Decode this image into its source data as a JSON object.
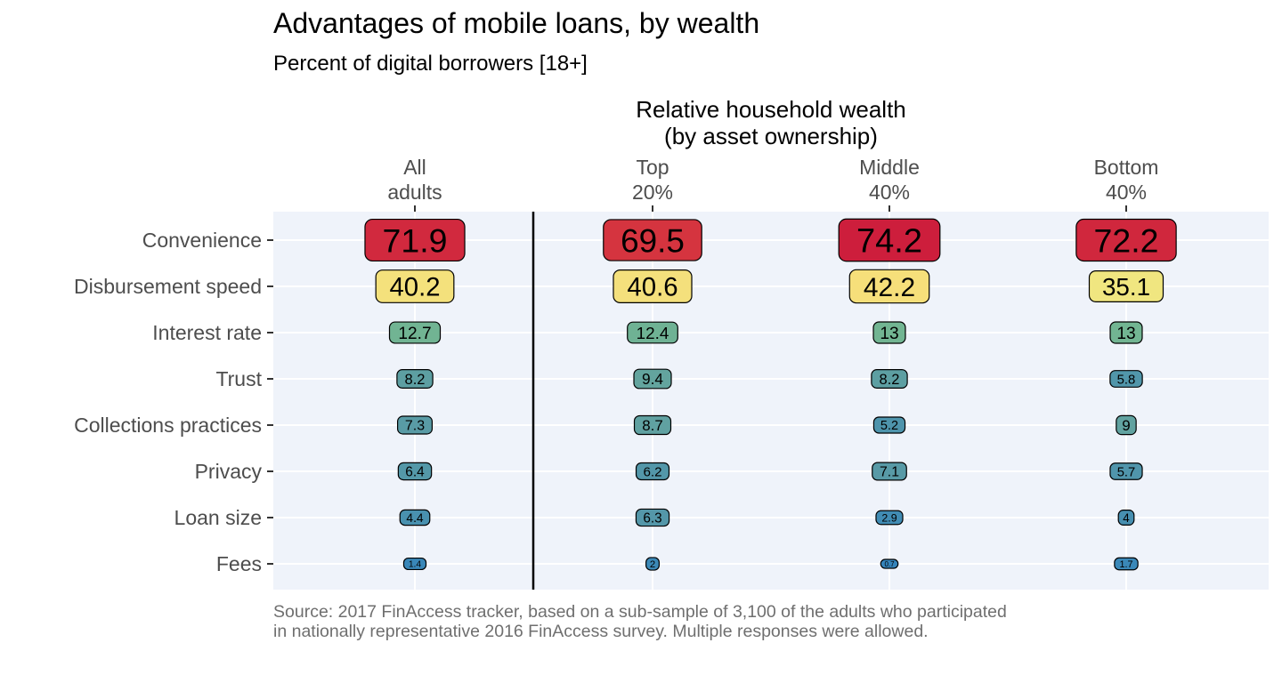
{
  "chart_data": {
    "type": "table",
    "title": "Advantages of mobile loans, by wealth",
    "subtitle": "Percent of digital borrowers [18+]",
    "group_header_line1": "Relative household wealth",
    "group_header_line2": "(by asset ownership)",
    "columns": [
      {
        "line1": "All",
        "line2": "adults"
      },
      {
        "line1": "Top",
        "line2": "20%"
      },
      {
        "line1": "Middle",
        "line2": "40%"
      },
      {
        "line1": "Bottom",
        "line2": "40%"
      }
    ],
    "rows": [
      "Convenience",
      "Disbursement speed",
      "Interest rate",
      "Trust",
      "Collections practices",
      "Privacy",
      "Loan size",
      "Fees"
    ],
    "values": [
      [
        "71.9",
        "69.5",
        "74.2",
        "72.2"
      ],
      [
        "40.2",
        "40.6",
        "42.2",
        "35.1"
      ],
      [
        "12.7",
        "12.4",
        "13",
        "13"
      ],
      [
        "8.2",
        "9.4",
        "8.2",
        "5.8"
      ],
      [
        "7.3",
        "8.7",
        "5.2",
        "9"
      ],
      [
        "6.4",
        "6.2",
        "7.1",
        "5.7"
      ],
      [
        "4.4",
        "6.3",
        "2.9",
        "4"
      ],
      [
        "1.4",
        "2",
        "0.7",
        "1.7"
      ]
    ],
    "color_scale": "Spectral (low = blue, high = red)",
    "grid": true,
    "panel_background": "#eff3fa"
  },
  "source_note": "Source: 2017 FinAccess tracker, based on a sub-sample of 3,100 of the adults who participated in nationally representative 2016 FinAccess survey. Multiple responses were allowed."
}
